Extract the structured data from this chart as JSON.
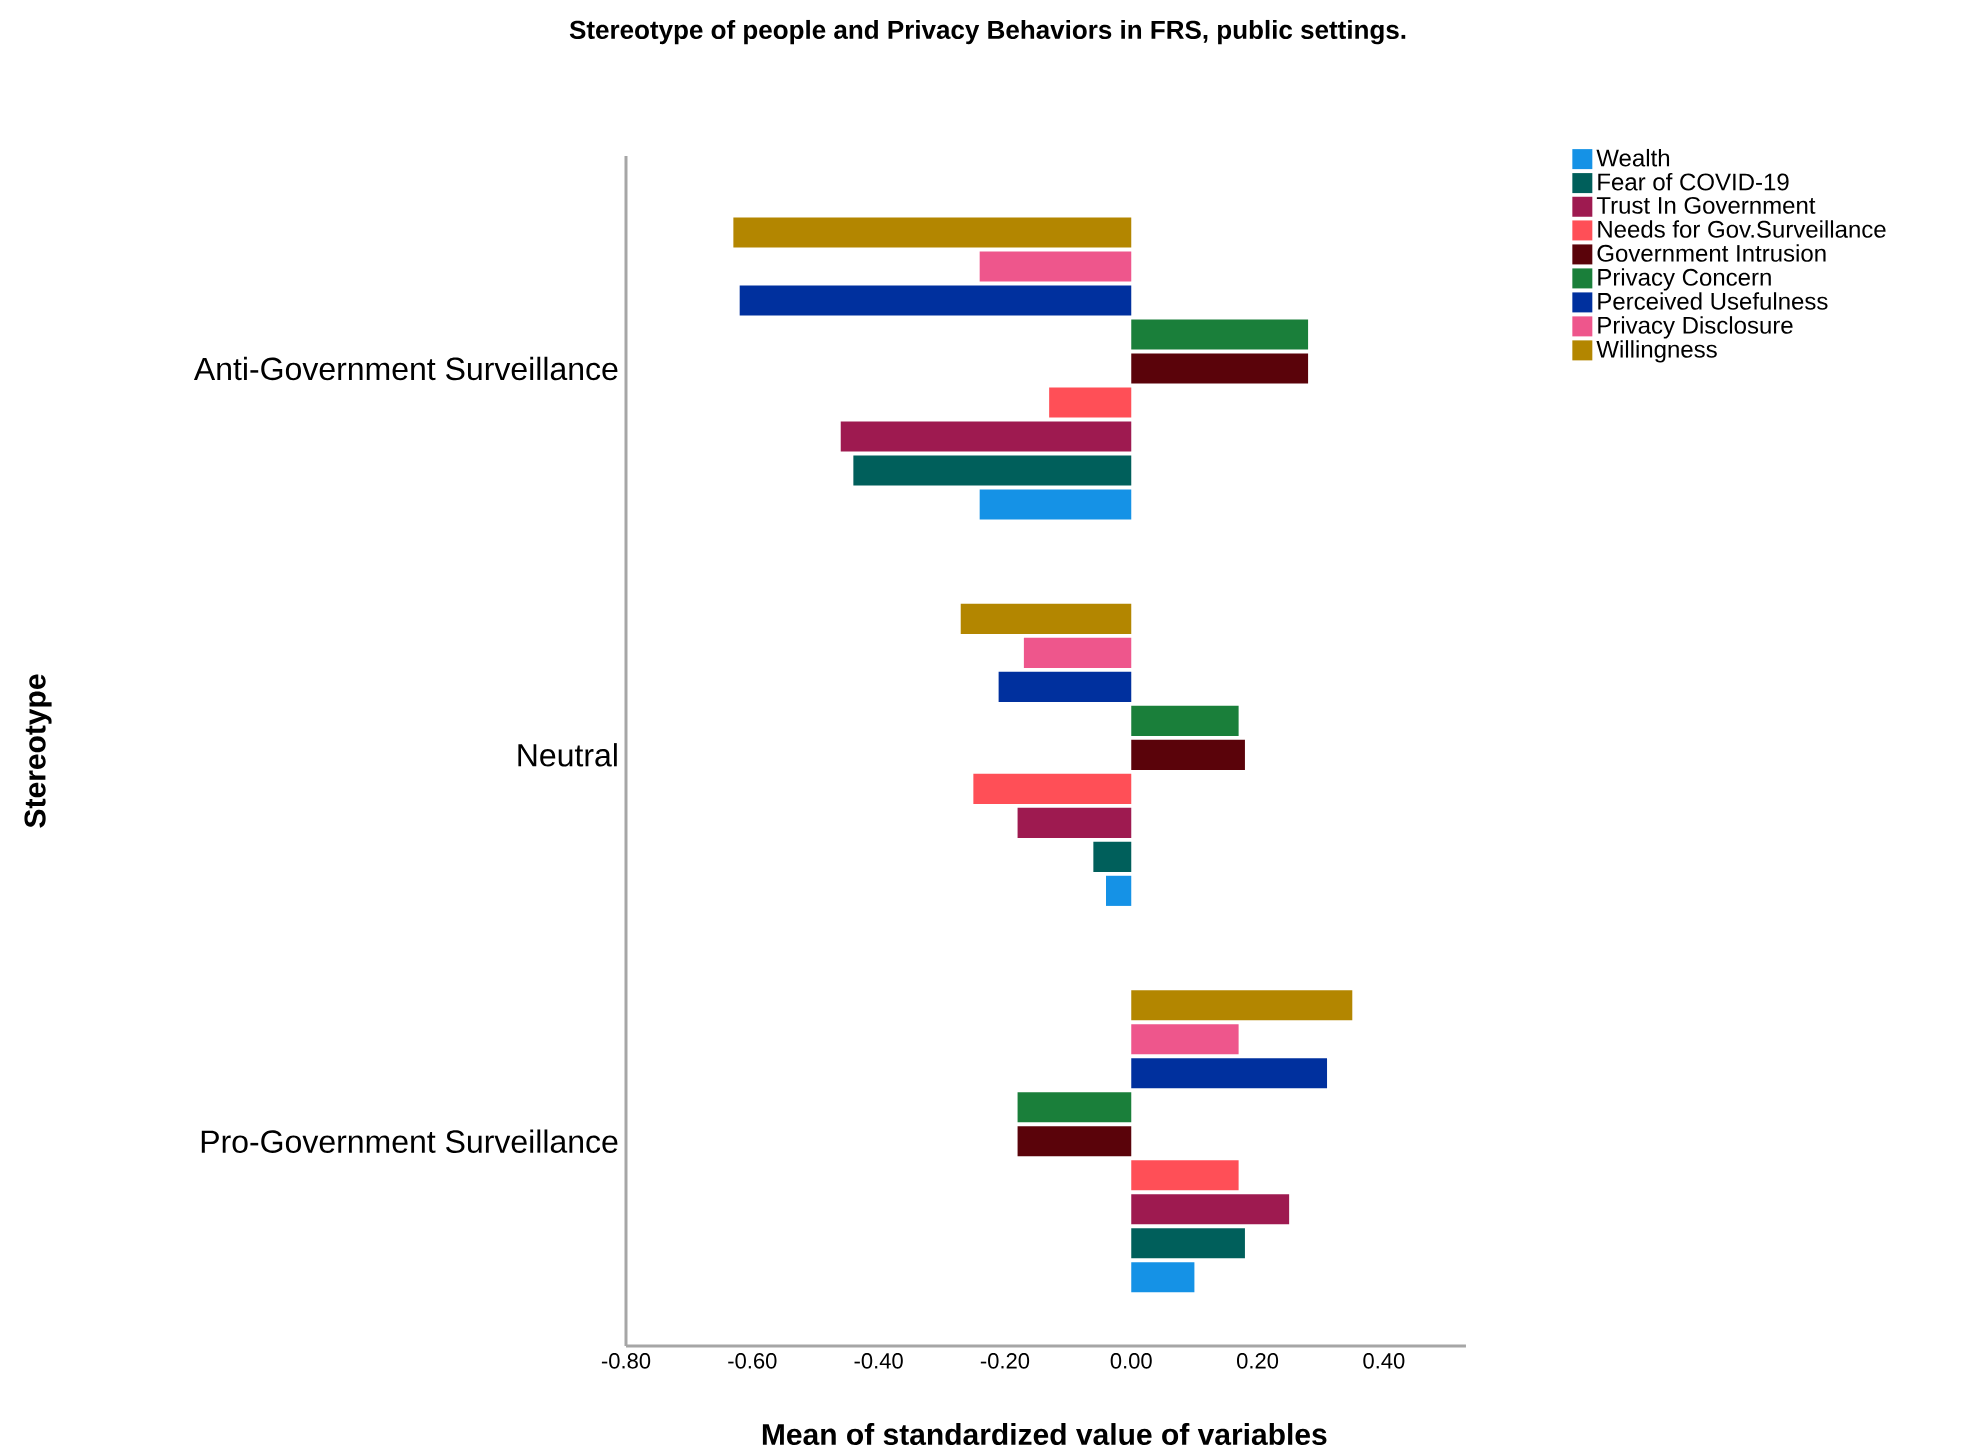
{
  "chart_data": {
    "type": "bar",
    "orientation": "horizontal",
    "title": "Stereotype of people and Privacy Behaviors in FRS, public settings.",
    "xlabel": "Mean of standardized value of variables",
    "ylabel": "Stereotype",
    "categories": [
      "Anti-Government Surveillance",
      "Neutral",
      "Pro-Government Surveillance"
    ],
    "series": [
      {
        "name": "Wealth",
        "color": "#1592e6",
        "values": [
          -0.24,
          -0.04,
          0.1
        ]
      },
      {
        "name": "Fear of COVID-19",
        "color": "#005f5b",
        "values": [
          -0.44,
          -0.06,
          0.18
        ]
      },
      {
        "name": "Trust In Government",
        "color": "#9e1a50",
        "values": [
          -0.46,
          -0.18,
          0.25
        ]
      },
      {
        "name": "Needs for Gov.Surveillance",
        "color": "#ff4f57",
        "values": [
          -0.13,
          -0.25,
          0.17
        ]
      },
      {
        "name": "Government Intrusion",
        "color": "#5a030a",
        "values": [
          0.28,
          0.18,
          -0.18
        ]
      },
      {
        "name": "Privacy Concern",
        "color": "#1a7f3a",
        "values": [
          0.28,
          0.17,
          -0.18
        ]
      },
      {
        "name": "Perceived Usefulness",
        "color": "#00309e",
        "values": [
          -0.62,
          -0.21,
          0.31
        ]
      },
      {
        "name": "Privacy Disclosure",
        "color": "#ee568c",
        "values": [
          -0.24,
          -0.17,
          0.17
        ]
      },
      {
        "name": "Willingness",
        "color": "#b38600",
        "values": [
          -0.63,
          -0.27,
          0.35
        ]
      }
    ],
    "xlim": [
      -0.8,
      0.53
    ],
    "xticks": [
      {
        "value": -0.8,
        "label": "-0.80"
      },
      {
        "value": -0.6,
        "label": "-0.60"
      },
      {
        "value": -0.4,
        "label": "-0.40"
      },
      {
        "value": -0.2,
        "label": "-0.20"
      },
      {
        "value": 0,
        "label": "0.00"
      },
      {
        "value": 0.2,
        "label": "0.20"
      },
      {
        "value": 0.4,
        "label": "0.40"
      }
    ],
    "grid": false,
    "legend": "right"
  }
}
